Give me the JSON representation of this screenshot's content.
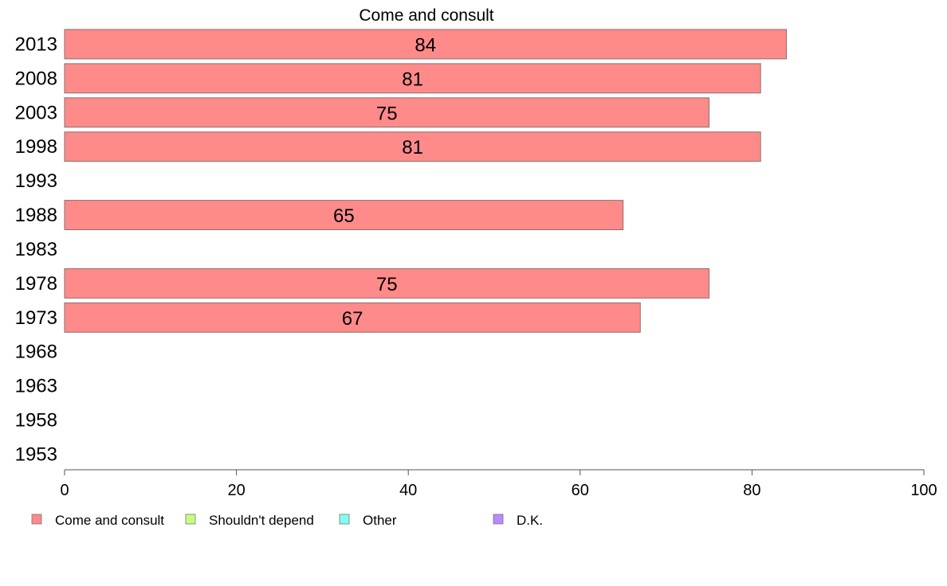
{
  "chart_data": {
    "type": "bar",
    "orientation": "horizontal",
    "title": "Come and consult",
    "categories": [
      "2013",
      "2008",
      "2003",
      "1998",
      "1993",
      "1988",
      "1983",
      "1978",
      "1973",
      "1968",
      "1963",
      "1958",
      "1953"
    ],
    "series": [
      {
        "name": "Come and consult",
        "color": "#ff8a8a",
        "values": [
          84,
          81,
          75,
          81,
          null,
          65,
          null,
          75,
          67,
          null,
          null,
          null,
          null
        ],
        "labels": [
          "84",
          "81",
          "75",
          "81",
          null,
          "65",
          null,
          "75",
          "67",
          null,
          null,
          null,
          null
        ]
      }
    ],
    "xlim": [
      0,
      100
    ],
    "xticks": [
      0,
      20,
      40,
      60,
      80,
      100
    ],
    "grid": false,
    "legend": {
      "placement": "bottom-left",
      "entries": [
        {
          "label": "Come and consult",
          "color": "#ff8a8a"
        },
        {
          "label": "Shouldn't depend",
          "color": "#c6ff80"
        },
        {
          "label": "Other",
          "color": "#80fff0"
        },
        {
          "label": "D.K.",
          "color": "#bb88ff"
        }
      ]
    }
  }
}
